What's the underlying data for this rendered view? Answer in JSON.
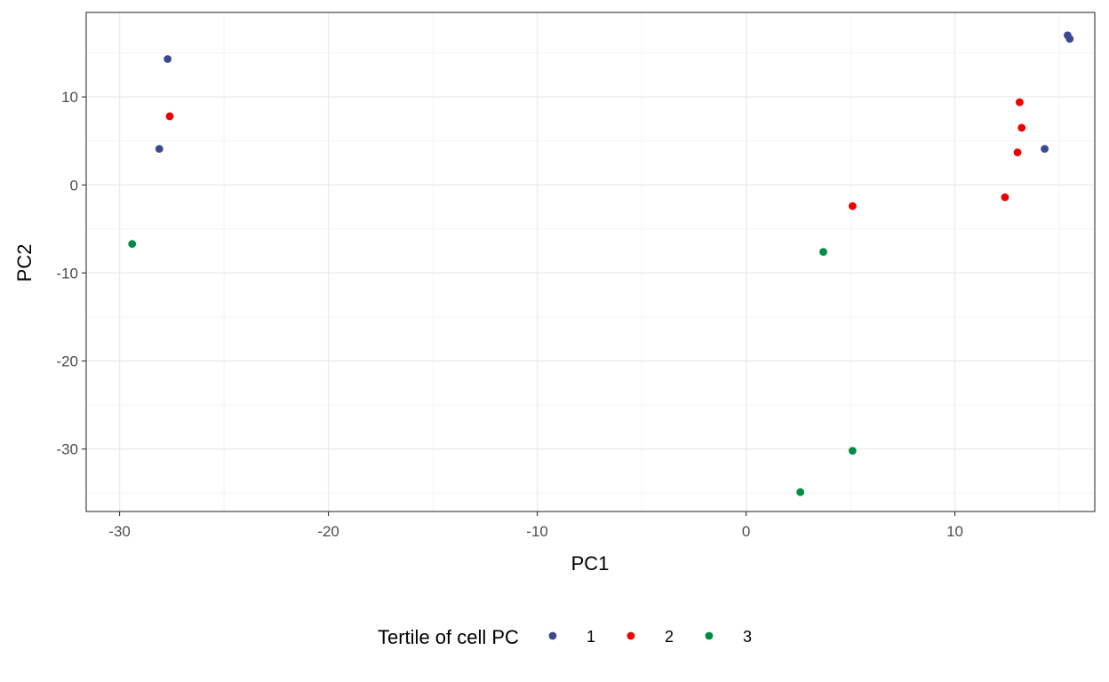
{
  "chart_data": {
    "type": "scatter",
    "xlabel": "PC1",
    "ylabel": "PC2",
    "xlim": [
      -31.6,
      16.7
    ],
    "ylim": [
      -37.1,
      19.6
    ],
    "xticks": [
      -30,
      -20,
      -10,
      0,
      10
    ],
    "xtick_labels": [
      "-30",
      "-20",
      "-10",
      "0",
      "10"
    ],
    "yticks": [
      -30,
      -20,
      -10,
      0,
      10
    ],
    "ytick_labels": [
      "-30",
      "-20",
      "-10",
      "0",
      "10"
    ],
    "grid": true,
    "legend": {
      "title": "Tertile of cell PC",
      "position": "bottom"
    },
    "series": [
      {
        "name": "1",
        "color": "#3b4992",
        "points": [
          {
            "x": -27.7,
            "y": 14.3
          },
          {
            "x": -28.1,
            "y": 4.1
          },
          {
            "x": 15.4,
            "y": 17.0
          },
          {
            "x": 15.5,
            "y": 16.6
          },
          {
            "x": 14.3,
            "y": 4.1
          }
        ]
      },
      {
        "name": "2",
        "color": "#ee0000",
        "points": [
          {
            "x": -27.6,
            "y": 7.8
          },
          {
            "x": 13.1,
            "y": 9.4
          },
          {
            "x": 13.2,
            "y": 6.5
          },
          {
            "x": 13.0,
            "y": 3.7
          },
          {
            "x": 12.4,
            "y": -1.4
          },
          {
            "x": 5.1,
            "y": -2.4
          }
        ]
      },
      {
        "name": "3",
        "color": "#008b45",
        "points": [
          {
            "x": -29.4,
            "y": -6.7
          },
          {
            "x": 3.7,
            "y": -7.6
          },
          {
            "x": 5.1,
            "y": -30.2
          },
          {
            "x": 2.6,
            "y": -34.9
          }
        ]
      }
    ]
  }
}
